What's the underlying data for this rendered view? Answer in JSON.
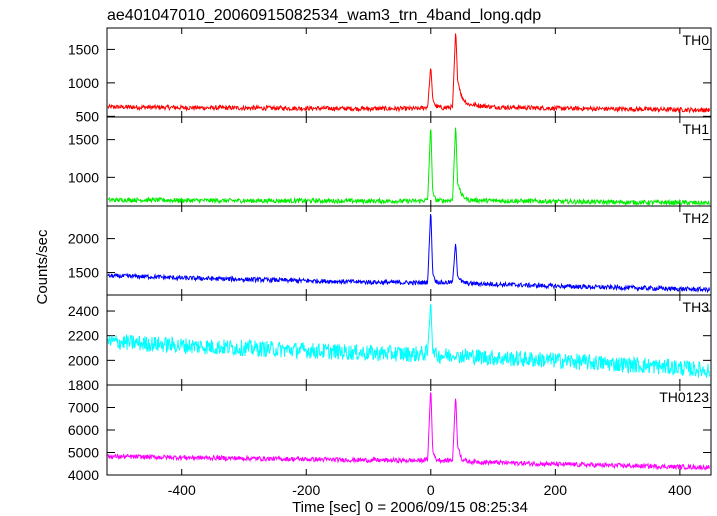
{
  "chart_data": {
    "type": "line",
    "title": "ae401047010_20060915082534_wam3_trn_4band_long.qdp",
    "xlabel": "Time [sec] 0 = 2006/09/15 08:25:34",
    "ylabel": "Counts/sec",
    "xlim": [
      -520,
      450
    ],
    "xticks": [
      -400,
      -200,
      0,
      200,
      400
    ],
    "grid": false,
    "panels": [
      {
        "name": "TH0",
        "color": "#ff0000",
        "ylim": [
          490,
          1820
        ],
        "yticks": [
          500,
          1000,
          1500
        ],
        "series": [
          {
            "x": [
              -510,
              -450,
              -400,
              -300,
              -200,
              -100,
              -20,
              -5,
              0,
              3,
              8,
              20,
              35,
              40,
              43,
              50,
              60,
              100,
              200,
              300,
              400,
              440
            ],
            "y": [
              640,
              635,
              630,
              625,
              620,
              615,
              615,
              640,
              1260,
              760,
              650,
              625,
              640,
              1800,
              1050,
              780,
              680,
              640,
              620,
              610,
              600,
              595
            ]
          }
        ]
      },
      {
        "name": "TH1",
        "color": "#00ee00",
        "ylim": [
          620,
          1800
        ],
        "yticks": [
          1000,
          1500
        ],
        "series": [
          {
            "x": [
              -510,
              -450,
              -400,
              -300,
              -200,
              -100,
              -20,
              -5,
              0,
              3,
              8,
              20,
              35,
              40,
              43,
              50,
              60,
              100,
              200,
              300,
              400,
              440
            ],
            "y": [
              700,
              700,
              695,
              690,
              690,
              685,
              685,
              700,
              1720,
              800,
              700,
              690,
              700,
              1720,
              920,
              760,
              700,
              690,
              680,
              670,
              665,
              660
            ]
          }
        ]
      },
      {
        "name": "TH2",
        "color": "#0000ff",
        "ylim": [
          1170,
          2480
        ],
        "yticks": [
          1500,
          2000
        ],
        "series": [
          {
            "x": [
              -510,
              -450,
              -400,
              -300,
              -200,
              -100,
              -20,
              -5,
              0,
              3,
              8,
              20,
              35,
              40,
              43,
              50,
              60,
              100,
              200,
              300,
              400,
              440
            ],
            "y": [
              1450,
              1440,
              1420,
              1400,
              1380,
              1360,
              1350,
              1360,
              2450,
              1500,
              1370,
              1350,
              1360,
              1960,
              1450,
              1360,
              1340,
              1330,
              1300,
              1280,
              1260,
              1250
            ]
          }
        ]
      },
      {
        "name": "TH3",
        "color": "#00ffff",
        "ylim": [
          1800,
          2530
        ],
        "yticks": [
          1800,
          2000,
          2200,
          2400
        ],
        "series": [
          {
            "x": [
              -510,
              -400,
              -300,
              -200,
              -100,
              -20,
              -5,
              0,
              3,
              8,
              50,
              100,
              200,
              300,
              400,
              440
            ],
            "y": [
              2150,
              2120,
              2100,
              2080,
              2060,
              2050,
              2060,
              2500,
              2080,
              2040,
              2040,
              2020,
              2000,
              1970,
              1940,
              1920
            ]
          }
        ]
      },
      {
        "name": "TH0123",
        "color": "#ff00ff",
        "ylim": [
          4000,
          8000
        ],
        "yticks": [
          4000,
          5000,
          6000,
          7000
        ],
        "series": [
          {
            "x": [
              -510,
              -450,
              -400,
              -300,
              -200,
              -100,
              -20,
              -5,
              0,
              3,
              8,
              20,
              35,
              40,
              43,
              50,
              60,
              100,
              200,
              300,
              400,
              440
            ],
            "y": [
              4820,
              4800,
              4780,
              4740,
              4700,
              4660,
              4640,
              4680,
              7950,
              5100,
              4700,
              4640,
              4660,
              7600,
              5300,
              4700,
              4600,
              4560,
              4480,
              4420,
              4360,
              4340
            ]
          }
        ]
      }
    ]
  }
}
